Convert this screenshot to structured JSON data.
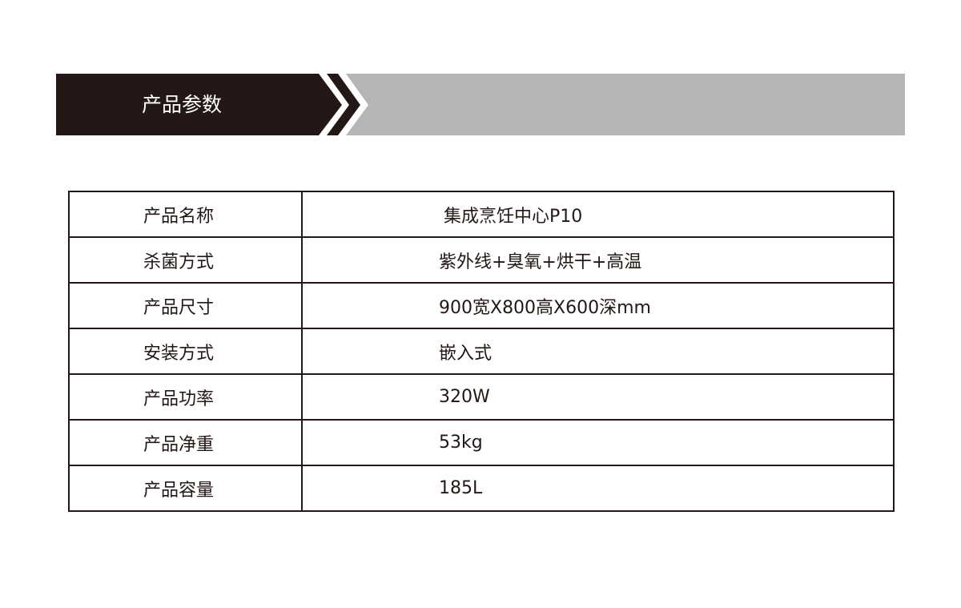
{
  "header": {
    "title": "产品参数",
    "colors": {
      "dark": "#231815",
      "grey": "#b5b5b5"
    }
  },
  "specs": [
    {
      "label": "产品名称",
      "value": "集成烹饪中心P10"
    },
    {
      "label": "杀菌方式",
      "value": "紫外线+臭氧+烘干+高温"
    },
    {
      "label": "产品尺寸",
      "value": "900宽X800高X600深mm"
    },
    {
      "label": "安装方式",
      "value": "嵌入式"
    },
    {
      "label": "产品功率",
      "value": "320W"
    },
    {
      "label": "产品净重",
      "value": "53kg"
    },
    {
      "label": "产品容量",
      "value": "185L"
    }
  ]
}
